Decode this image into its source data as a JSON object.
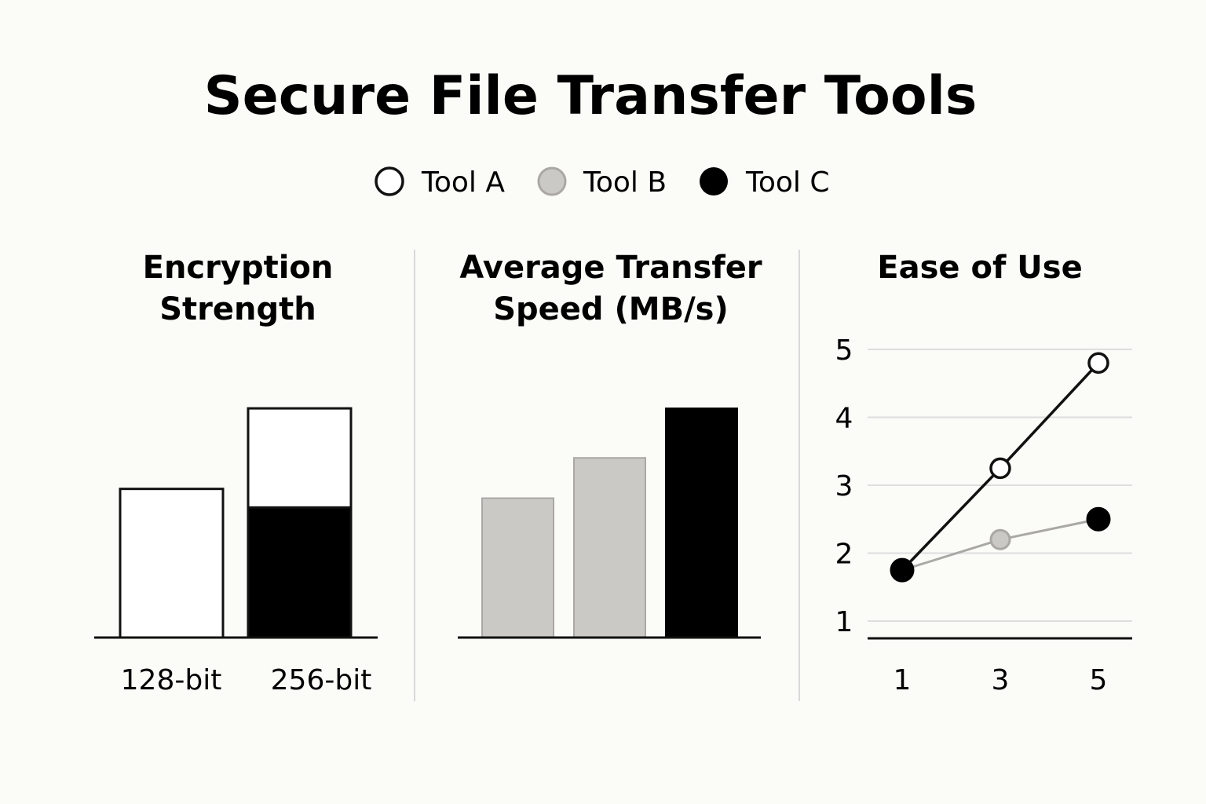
{
  "title": "Secure File Transfer Tools",
  "colors": {
    "tool_a": "#ffffff",
    "tool_b": "#cbc9c6",
    "tool_c": "#000000",
    "stroke": "#111111",
    "tool_b_stroke": "#aaa8a5",
    "grid": "#dedede",
    "divider": "#d9d9d9",
    "background": "#fbfbf8"
  },
  "legend": [
    {
      "label": "Tool A",
      "key": "tool_a"
    },
    {
      "label": "Tool B",
      "key": "tool_b"
    },
    {
      "label": "Tool C",
      "key": "tool_c"
    }
  ],
  "chart_data": [
    {
      "type": "bar",
      "title_lines": [
        "Encryption",
        "Strength"
      ],
      "categories": [
        "128-bit",
        "256-bit"
      ],
      "series": [
        {
          "name": "Tool A",
          "values": [
            2.4,
            1.6
          ]
        },
        {
          "name": "Tool C",
          "values": [
            0,
            2.1
          ]
        }
      ],
      "stacked": true,
      "ylim": [
        0,
        4.5
      ],
      "grid": false
    },
    {
      "type": "bar",
      "title_lines": [
        "Average Transfer",
        "Speed (MB/s)"
      ],
      "categories": [
        "",
        "",
        ""
      ],
      "series": [
        {
          "name": "Tool B",
          "values": [
            2.25,
            2.9,
            0
          ]
        },
        {
          "name": "Tool C",
          "values": [
            0,
            0,
            3.7
          ]
        }
      ],
      "ylim": [
        0,
        4.5
      ],
      "grid": false
    },
    {
      "type": "line",
      "title": "Ease of Use",
      "x": [
        1,
        3,
        5
      ],
      "series": [
        {
          "name": "Tool A",
          "points": [
            [
              1,
              1.75
            ],
            [
              3,
              3.25
            ],
            [
              5,
              4.8
            ]
          ]
        },
        {
          "name": "Tool B",
          "points": [
            [
              1,
              1.75
            ],
            [
              3,
              2.2
            ],
            [
              5,
              2.5
            ]
          ]
        },
        {
          "name": "Tool C",
          "points": [
            [
              1,
              1.75
            ],
            [
              5,
              2.5
            ]
          ]
        }
      ],
      "xticks": [
        "1",
        "3",
        "5"
      ],
      "yticks": [
        "1",
        "2",
        "3",
        "4",
        "5"
      ],
      "xlim": [
        1,
        5
      ],
      "ylim": [
        0.75,
        5
      ],
      "grid": true
    }
  ]
}
